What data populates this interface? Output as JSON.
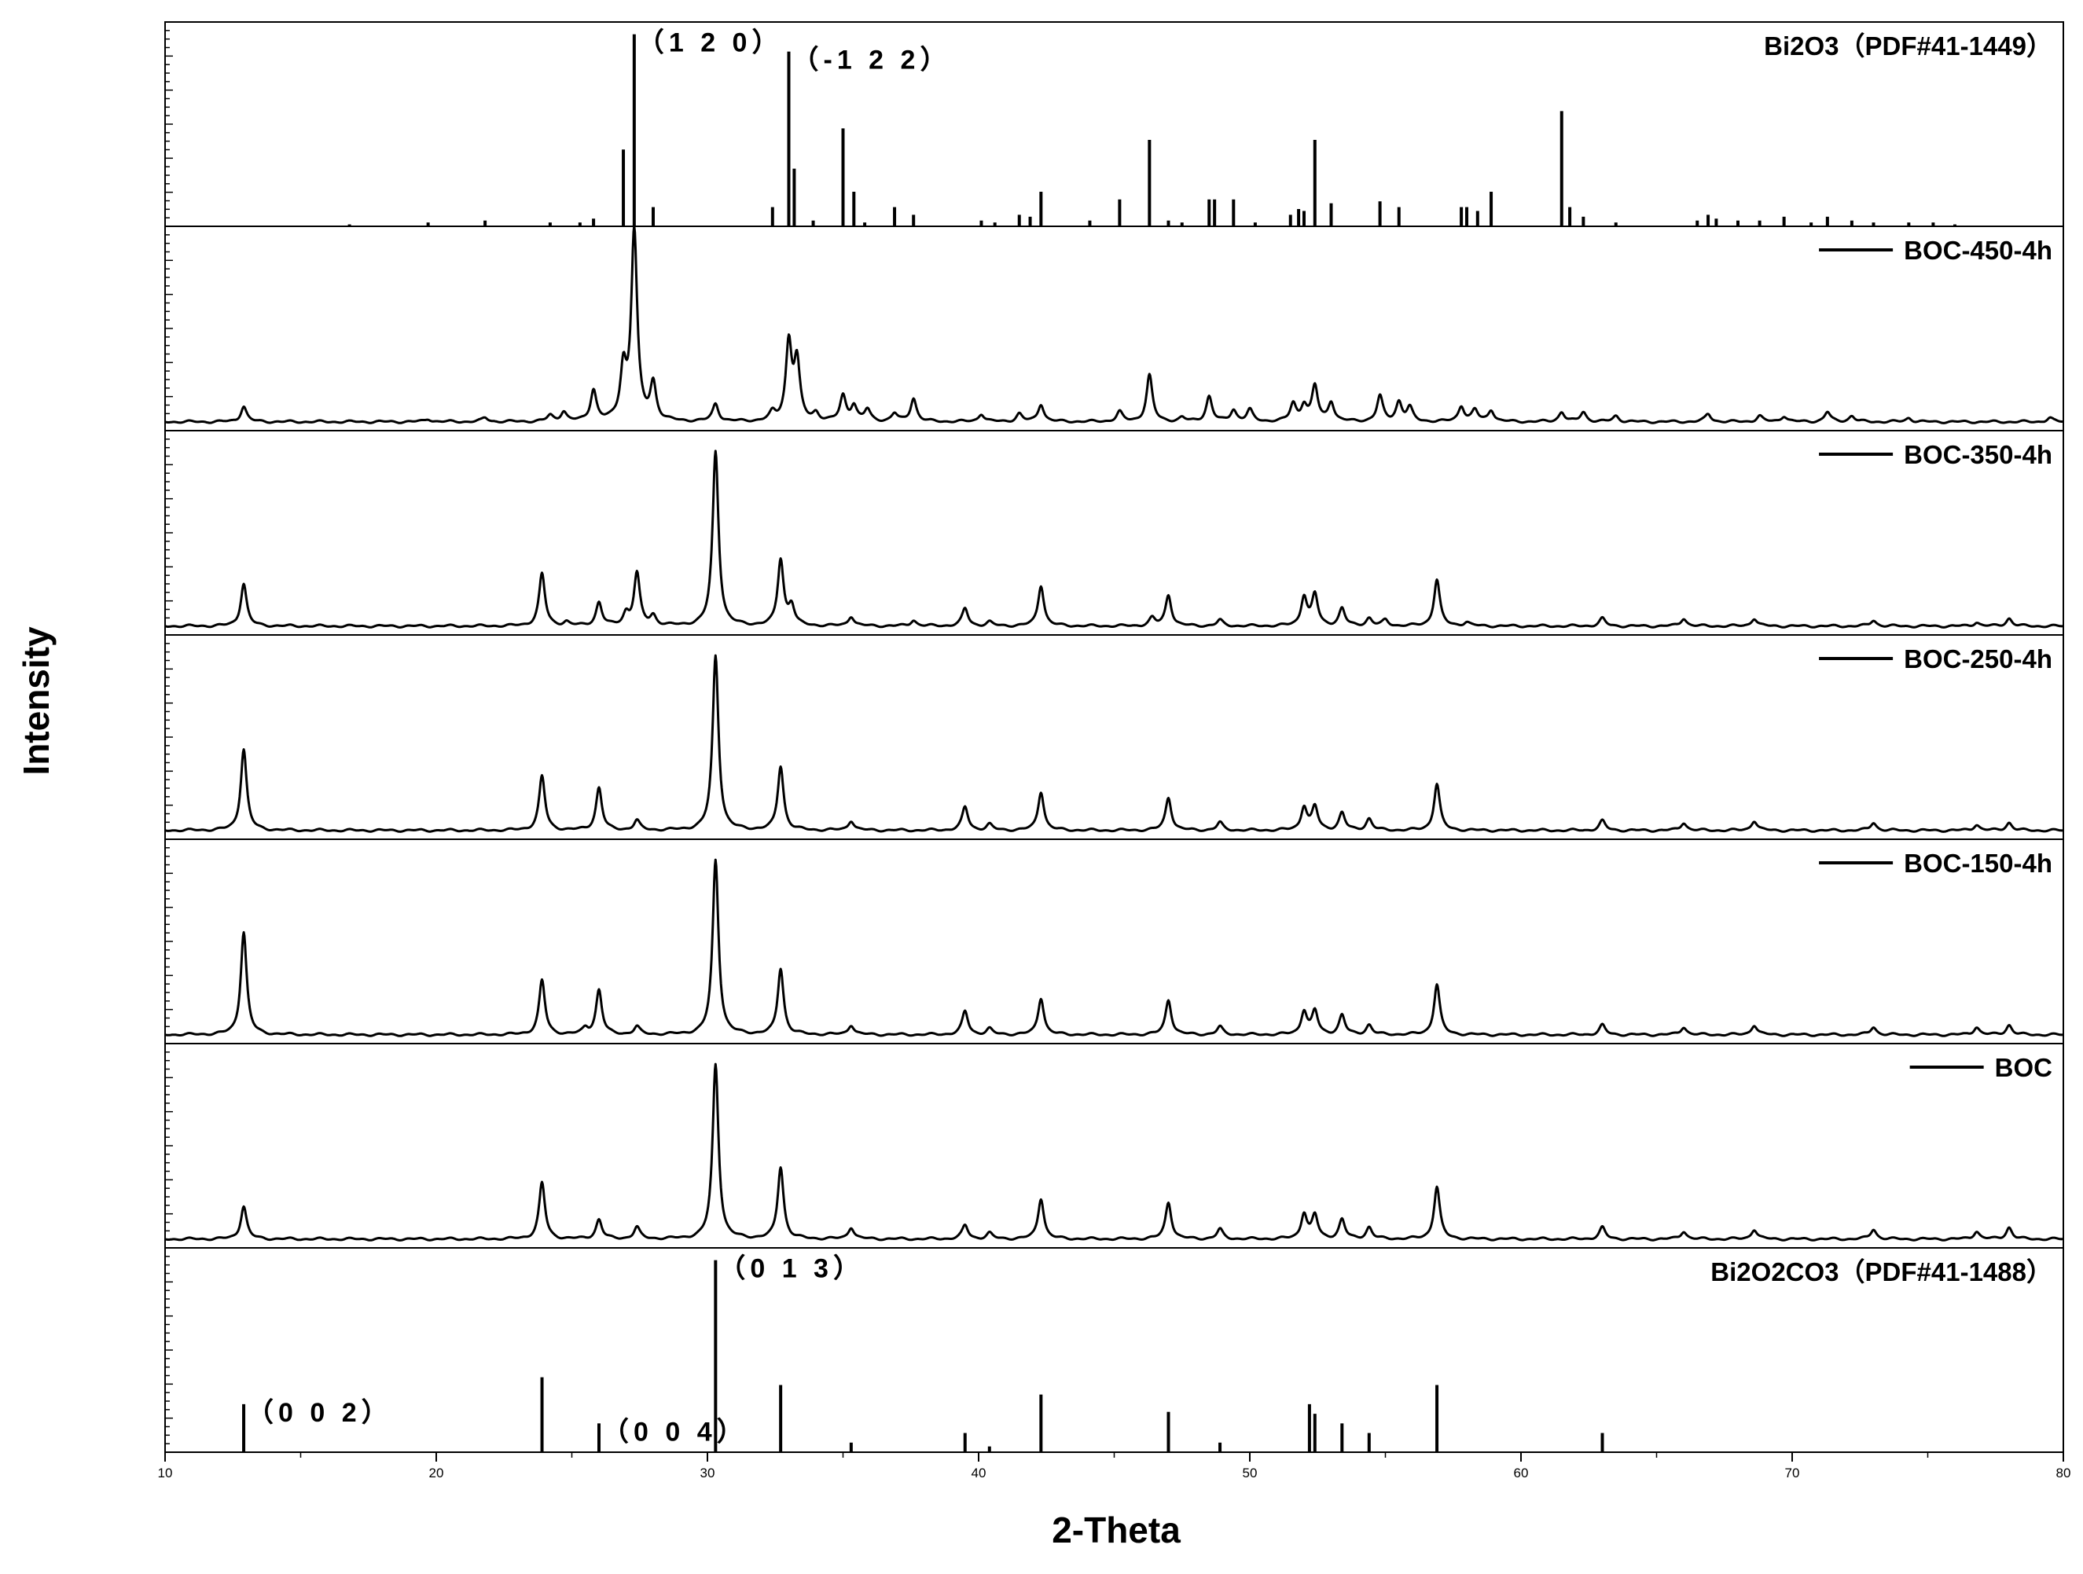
{
  "chart_data": {
    "type": "line",
    "xlabel": "2-Theta",
    "ylabel": "Intensity",
    "xlim": [
      10,
      80
    ],
    "xticks": [
      10,
      20,
      30,
      40,
      50,
      60,
      70,
      80
    ],
    "colors": {
      "line": "#000000",
      "background": "#ffffff"
    },
    "panels": [
      {
        "label": "Bi2O3（PDF#41-1449）",
        "kind": "reference",
        "sticks": [
          [
            16.8,
            0.01
          ],
          [
            19.7,
            0.02
          ],
          [
            21.8,
            0.03
          ],
          [
            24.2,
            0.02
          ],
          [
            25.3,
            0.02
          ],
          [
            25.8,
            0.04
          ],
          [
            26.9,
            0.4
          ],
          [
            27.3,
            1.0
          ],
          [
            28.0,
            0.1
          ],
          [
            32.4,
            0.1
          ],
          [
            33.0,
            0.91
          ],
          [
            33.2,
            0.3
          ],
          [
            33.9,
            0.03
          ],
          [
            35.0,
            0.51
          ],
          [
            35.4,
            0.18
          ],
          [
            35.8,
            0.02
          ],
          [
            36.9,
            0.1
          ],
          [
            37.6,
            0.06
          ],
          [
            40.1,
            0.03
          ],
          [
            40.6,
            0.02
          ],
          [
            41.5,
            0.06
          ],
          [
            41.9,
            0.05
          ],
          [
            42.3,
            0.18
          ],
          [
            44.1,
            0.03
          ],
          [
            45.2,
            0.14
          ],
          [
            46.3,
            0.45
          ],
          [
            47.0,
            0.03
          ],
          [
            47.5,
            0.02
          ],
          [
            48.5,
            0.14
          ],
          [
            48.7,
            0.14
          ],
          [
            49.4,
            0.14
          ],
          [
            50.2,
            0.02
          ],
          [
            51.5,
            0.06
          ],
          [
            51.8,
            0.09
          ],
          [
            52.0,
            0.08
          ],
          [
            52.4,
            0.45
          ],
          [
            53.0,
            0.12
          ],
          [
            54.8,
            0.13
          ],
          [
            55.5,
            0.1
          ],
          [
            57.8,
            0.1
          ],
          [
            58.0,
            0.1
          ],
          [
            58.4,
            0.08
          ],
          [
            58.9,
            0.18
          ],
          [
            61.5,
            0.6
          ],
          [
            61.8,
            0.1
          ],
          [
            62.3,
            0.05
          ],
          [
            63.5,
            0.02
          ],
          [
            66.5,
            0.03
          ],
          [
            66.9,
            0.06
          ],
          [
            67.2,
            0.04
          ],
          [
            68.0,
            0.03
          ],
          [
            68.8,
            0.03
          ],
          [
            69.7,
            0.05
          ],
          [
            70.7,
            0.02
          ],
          [
            71.3,
            0.05
          ],
          [
            72.2,
            0.03
          ],
          [
            73.0,
            0.02
          ],
          [
            74.3,
            0.02
          ],
          [
            75.2,
            0.02
          ],
          [
            76.0,
            0.01
          ]
        ],
        "annotations": [
          {
            "text": "（1 2 0）",
            "x": 27.3
          },
          {
            "text": "（-1 2 2）",
            "x": 33.0
          }
        ]
      },
      {
        "label": "BOC-450-4h",
        "kind": "pattern",
        "peaks": [
          [
            12.9,
            0.08
          ],
          [
            19.7,
            0.015
          ],
          [
            21.8,
            0.02
          ],
          [
            24.2,
            0.03
          ],
          [
            24.7,
            0.05
          ],
          [
            25.8,
            0.16
          ],
          [
            26.9,
            0.26
          ],
          [
            27.3,
            0.98
          ],
          [
            28.0,
            0.19
          ],
          [
            30.3,
            0.09
          ],
          [
            32.4,
            0.04
          ],
          [
            33.0,
            0.4
          ],
          [
            33.3,
            0.3
          ],
          [
            34.0,
            0.04
          ],
          [
            35.0,
            0.13
          ],
          [
            35.4,
            0.08
          ],
          [
            35.9,
            0.06
          ],
          [
            36.9,
            0.04
          ],
          [
            37.6,
            0.12
          ],
          [
            40.1,
            0.04
          ],
          [
            41.5,
            0.04
          ],
          [
            42.3,
            0.09
          ],
          [
            45.2,
            0.05
          ],
          [
            46.3,
            0.24
          ],
          [
            47.5,
            0.02
          ],
          [
            48.5,
            0.13
          ],
          [
            49.4,
            0.06
          ],
          [
            50.0,
            0.06
          ],
          [
            51.6,
            0.09
          ],
          [
            52.0,
            0.08
          ],
          [
            52.4,
            0.18
          ],
          [
            53.0,
            0.1
          ],
          [
            54.8,
            0.13
          ],
          [
            55.5,
            0.1
          ],
          [
            55.9,
            0.07
          ],
          [
            57.8,
            0.08
          ],
          [
            58.3,
            0.06
          ],
          [
            58.9,
            0.06
          ],
          [
            61.5,
            0.05
          ],
          [
            62.3,
            0.05
          ],
          [
            63.5,
            0.03
          ],
          [
            66.9,
            0.04
          ],
          [
            68.8,
            0.03
          ],
          [
            69.7,
            0.03
          ],
          [
            71.3,
            0.05
          ],
          [
            72.2,
            0.03
          ],
          [
            74.3,
            0.02
          ],
          [
            79.5,
            0.02
          ]
        ]
      },
      {
        "label": "BOC-350-4h",
        "kind": "pattern",
        "peaks": [
          [
            12.9,
            0.22
          ],
          [
            23.9,
            0.27
          ],
          [
            24.8,
            0.02
          ],
          [
            26.0,
            0.12
          ],
          [
            27.0,
            0.06
          ],
          [
            27.4,
            0.27
          ],
          [
            28.0,
            0.05
          ],
          [
            30.3,
            0.9
          ],
          [
            32.7,
            0.34
          ],
          [
            33.1,
            0.1
          ],
          [
            35.3,
            0.05
          ],
          [
            37.6,
            0.03
          ],
          [
            39.5,
            0.09
          ],
          [
            40.4,
            0.02
          ],
          [
            42.3,
            0.21
          ],
          [
            46.4,
            0.04
          ],
          [
            47.0,
            0.16
          ],
          [
            48.9,
            0.03
          ],
          [
            52.0,
            0.15
          ],
          [
            52.4,
            0.16
          ],
          [
            53.4,
            0.09
          ],
          [
            54.4,
            0.04
          ],
          [
            55.0,
            0.03
          ],
          [
            56.9,
            0.24
          ],
          [
            58.0,
            0.02
          ],
          [
            63.0,
            0.04
          ],
          [
            66.0,
            0.04
          ],
          [
            68.6,
            0.04
          ],
          [
            73.0,
            0.03
          ],
          [
            76.8,
            0.02
          ],
          [
            78.0,
            0.04
          ]
        ]
      },
      {
        "label": "BOC-250-4h",
        "kind": "pattern",
        "peaks": [
          [
            12.9,
            0.42
          ],
          [
            23.9,
            0.28
          ],
          [
            26.0,
            0.22
          ],
          [
            27.4,
            0.05
          ],
          [
            30.3,
            0.9
          ],
          [
            32.7,
            0.33
          ],
          [
            35.3,
            0.05
          ],
          [
            39.5,
            0.12
          ],
          [
            40.4,
            0.03
          ],
          [
            42.3,
            0.2
          ],
          [
            47.0,
            0.17
          ],
          [
            48.9,
            0.04
          ],
          [
            52.0,
            0.12
          ],
          [
            52.4,
            0.12
          ],
          [
            53.4,
            0.09
          ],
          [
            54.4,
            0.06
          ],
          [
            56.9,
            0.24
          ],
          [
            63.0,
            0.05
          ],
          [
            66.0,
            0.04
          ],
          [
            68.6,
            0.05
          ],
          [
            73.0,
            0.04
          ],
          [
            76.8,
            0.03
          ],
          [
            78.0,
            0.04
          ]
        ]
      },
      {
        "label": "BOC-150-4h",
        "kind": "pattern",
        "peaks": [
          [
            12.9,
            0.53
          ],
          [
            23.9,
            0.28
          ],
          [
            25.5,
            0.03
          ],
          [
            26.0,
            0.23
          ],
          [
            27.4,
            0.04
          ],
          [
            30.3,
            0.9
          ],
          [
            32.7,
            0.34
          ],
          [
            35.3,
            0.05
          ],
          [
            39.5,
            0.12
          ],
          [
            40.4,
            0.03
          ],
          [
            42.3,
            0.19
          ],
          [
            47.0,
            0.18
          ],
          [
            48.9,
            0.04
          ],
          [
            52.0,
            0.12
          ],
          [
            52.4,
            0.12
          ],
          [
            53.4,
            0.1
          ],
          [
            54.4,
            0.05
          ],
          [
            56.9,
            0.26
          ],
          [
            63.0,
            0.05
          ],
          [
            66.0,
            0.04
          ],
          [
            68.6,
            0.05
          ],
          [
            73.0,
            0.04
          ],
          [
            76.8,
            0.04
          ],
          [
            78.0,
            0.05
          ]
        ]
      },
      {
        "label": "BOC",
        "kind": "pattern",
        "peaks": [
          [
            12.9,
            0.17
          ],
          [
            23.9,
            0.29
          ],
          [
            26.0,
            0.1
          ],
          [
            27.4,
            0.06
          ],
          [
            30.3,
            0.9
          ],
          [
            32.7,
            0.37
          ],
          [
            35.3,
            0.06
          ],
          [
            39.5,
            0.07
          ],
          [
            40.4,
            0.03
          ],
          [
            42.3,
            0.21
          ],
          [
            47.0,
            0.19
          ],
          [
            48.9,
            0.05
          ],
          [
            52.0,
            0.13
          ],
          [
            52.4,
            0.12
          ],
          [
            53.4,
            0.1
          ],
          [
            54.4,
            0.06
          ],
          [
            56.9,
            0.27
          ],
          [
            63.0,
            0.06
          ],
          [
            66.0,
            0.04
          ],
          [
            68.6,
            0.05
          ],
          [
            73.0,
            0.05
          ],
          [
            76.8,
            0.04
          ],
          [
            78.0,
            0.06
          ]
        ]
      },
      {
        "label": "Bi2O2CO3（PDF#41-1488）",
        "kind": "reference",
        "sticks": [
          [
            12.9,
            0.25
          ],
          [
            23.9,
            0.39
          ],
          [
            26.0,
            0.15
          ],
          [
            30.3,
            1.0
          ],
          [
            32.7,
            0.35
          ],
          [
            35.3,
            0.05
          ],
          [
            39.5,
            0.1
          ],
          [
            40.4,
            0.03
          ],
          [
            42.3,
            0.3
          ],
          [
            47.0,
            0.21
          ],
          [
            48.9,
            0.05
          ],
          [
            52.2,
            0.25
          ],
          [
            52.4,
            0.2
          ],
          [
            53.4,
            0.15
          ],
          [
            54.4,
            0.1
          ],
          [
            56.9,
            0.35
          ],
          [
            63.0,
            0.1
          ]
        ],
        "annotations": [
          {
            "text": "（0 0 2）",
            "x": 12.9
          },
          {
            "text": "（0 0 4）",
            "x": 26.0
          },
          {
            "text": "（0 1 3）",
            "x": 30.3
          }
        ]
      }
    ]
  }
}
